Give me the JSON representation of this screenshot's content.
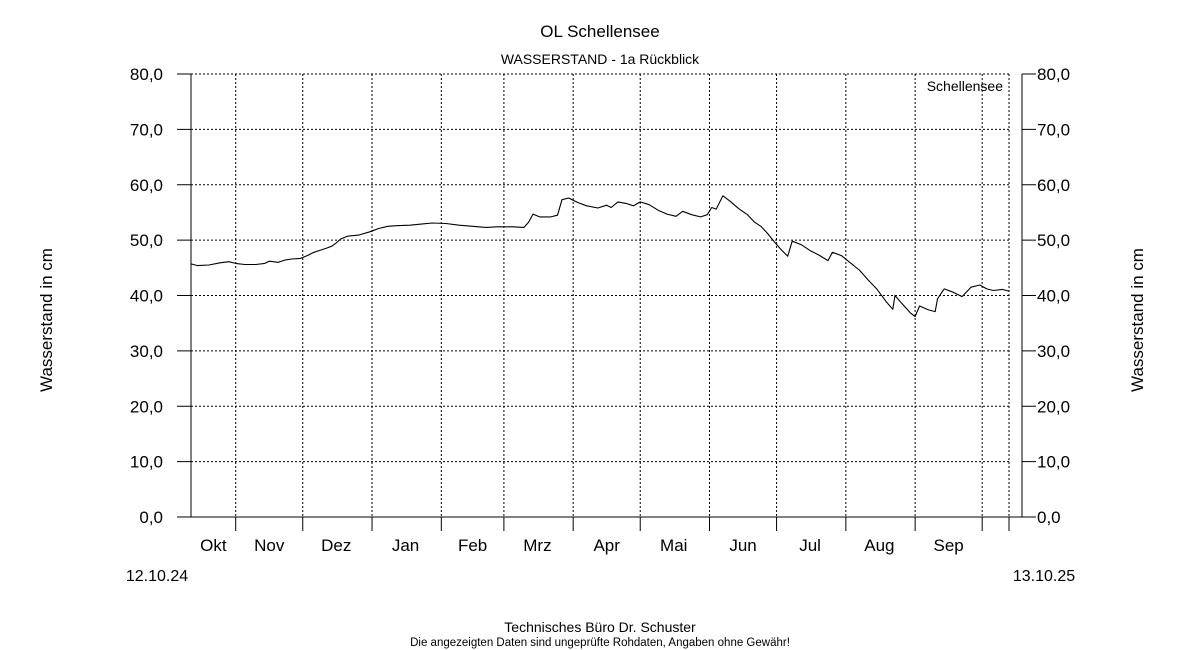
{
  "header": {
    "title": "OL Schellensee",
    "subtitle": "WASSERSTAND - 1a Rückblick"
  },
  "footer": {
    "credit": "Technisches Büro Dr. Schuster",
    "disclaimer": "Die angezeigten Daten sind ungeprüfte Rohdaten, Angaben ohne Gewähr!",
    "disclaimer_color": "#e00000"
  },
  "chart_data": {
    "type": "line",
    "title": "OL Schellensee",
    "subtitle": "WASSERSTAND - 1a Rückblick",
    "ylabel": "Wasserstand in cm",
    "ylabel_right": "Wasserstand in cm",
    "ylim": [
      0,
      80
    ],
    "yticks": [
      "0,0",
      "10,0",
      "20,0",
      "30,0",
      "40,0",
      "50,0",
      "60,0",
      "70,0",
      "80,0"
    ],
    "ytick_values": [
      0,
      10,
      20,
      30,
      40,
      50,
      60,
      70,
      80
    ],
    "x_start_label": "12.10.24",
    "x_end_label": "13.10.25",
    "x_start_date": "2024-10-12",
    "x_end_date": "2025-10-13",
    "month_labels": [
      "Okt",
      "Nov",
      "Dez",
      "Jan",
      "Feb",
      "Mrz",
      "Apr",
      "Mai",
      "Jun",
      "Jul",
      "Aug",
      "Sep"
    ],
    "month_label_dates": [
      "2024-10-22",
      "2024-11-16",
      "2024-12-16",
      "2025-01-16",
      "2025-02-15",
      "2025-03-16",
      "2025-04-16",
      "2025-05-16",
      "2025-06-16",
      "2025-07-16",
      "2025-08-16",
      "2025-09-16"
    ],
    "month_boundaries": [
      "2024-11-01",
      "2024-12-01",
      "2025-01-01",
      "2025-02-01",
      "2025-03-01",
      "2025-04-01",
      "2025-05-01",
      "2025-06-01",
      "2025-07-01",
      "2025-08-01",
      "2025-09-01",
      "2025-10-01",
      "2025-10-13"
    ],
    "grid": true,
    "legend": "top-right",
    "series": [
      {
        "name": "Schellensee",
        "color": "#000000",
        "points": [
          [
            "2024-10-12",
            45.7
          ],
          [
            "2024-10-15",
            45.4
          ],
          [
            "2024-10-20",
            45.5
          ],
          [
            "2024-10-25",
            45.9
          ],
          [
            "2024-10-29",
            46.1
          ],
          [
            "2024-11-01",
            45.8
          ],
          [
            "2024-11-05",
            45.6
          ],
          [
            "2024-11-10",
            45.6
          ],
          [
            "2024-11-14",
            45.8
          ],
          [
            "2024-11-16",
            46.2
          ],
          [
            "2024-11-20",
            46.0
          ],
          [
            "2024-11-23",
            46.4
          ],
          [
            "2024-11-26",
            46.6
          ],
          [
            "2024-11-30",
            46.7
          ],
          [
            "2024-12-03",
            47.2
          ],
          [
            "2024-12-06",
            47.8
          ],
          [
            "2024-12-09",
            48.2
          ],
          [
            "2024-12-12",
            48.6
          ],
          [
            "2024-12-14",
            48.9
          ],
          [
            "2024-12-16",
            49.5
          ],
          [
            "2024-12-18",
            50.2
          ],
          [
            "2024-12-21",
            50.7
          ],
          [
            "2024-12-26",
            50.9
          ],
          [
            "2024-12-31",
            51.5
          ],
          [
            "2025-01-04",
            52.1
          ],
          [
            "2025-01-08",
            52.5
          ],
          [
            "2025-01-12",
            52.6
          ],
          [
            "2025-01-18",
            52.7
          ],
          [
            "2025-01-23",
            52.9
          ],
          [
            "2025-01-28",
            53.1
          ],
          [
            "2025-02-03",
            53.0
          ],
          [
            "2025-02-09",
            52.7
          ],
          [
            "2025-02-15",
            52.5
          ],
          [
            "2025-02-21",
            52.3
          ],
          [
            "2025-02-26",
            52.4
          ],
          [
            "2025-03-05",
            52.4
          ],
          [
            "2025-03-10",
            52.3
          ],
          [
            "2025-03-12",
            53.2
          ],
          [
            "2025-03-14",
            54.7
          ],
          [
            "2025-03-17",
            54.2
          ],
          [
            "2025-03-22",
            54.2
          ],
          [
            "2025-03-25",
            54.5
          ],
          [
            "2025-03-27",
            57.3
          ],
          [
            "2025-03-30",
            57.6
          ],
          [
            "2025-04-03",
            56.8
          ],
          [
            "2025-04-07",
            56.2
          ],
          [
            "2025-04-12",
            55.8
          ],
          [
            "2025-04-16",
            56.3
          ],
          [
            "2025-04-18",
            55.9
          ],
          [
            "2025-04-21",
            56.9
          ],
          [
            "2025-04-25",
            56.6
          ],
          [
            "2025-04-28",
            56.2
          ],
          [
            "2025-05-01",
            56.9
          ],
          [
            "2025-05-05",
            56.4
          ],
          [
            "2025-05-09",
            55.4
          ],
          [
            "2025-05-13",
            54.7
          ],
          [
            "2025-05-17",
            54.3
          ],
          [
            "2025-05-20",
            55.2
          ],
          [
            "2025-05-24",
            54.6
          ],
          [
            "2025-05-28",
            54.2
          ],
          [
            "2025-05-31",
            54.6
          ],
          [
            "2025-06-02",
            55.9
          ],
          [
            "2025-06-04",
            55.6
          ],
          [
            "2025-06-07",
            58.0
          ],
          [
            "2025-06-10",
            57.1
          ],
          [
            "2025-06-14",
            55.7
          ],
          [
            "2025-06-18",
            54.6
          ],
          [
            "2025-06-21",
            53.3
          ],
          [
            "2025-06-24",
            52.5
          ],
          [
            "2025-06-27",
            51.2
          ],
          [
            "2025-06-30",
            49.7
          ],
          [
            "2025-07-03",
            48.3
          ],
          [
            "2025-07-06",
            47.1
          ],
          [
            "2025-07-08",
            49.8
          ],
          [
            "2025-07-12",
            49.2
          ],
          [
            "2025-07-16",
            48.1
          ],
          [
            "2025-07-20",
            47.3
          ],
          [
            "2025-07-24",
            46.3
          ],
          [
            "2025-07-26",
            47.8
          ],
          [
            "2025-07-30",
            47.2
          ],
          [
            "2025-08-03",
            45.9
          ],
          [
            "2025-08-07",
            44.6
          ],
          [
            "2025-08-11",
            42.8
          ],
          [
            "2025-08-15",
            41.1
          ],
          [
            "2025-08-19",
            38.9
          ],
          [
            "2025-08-22",
            37.5
          ],
          [
            "2025-08-23",
            40.0
          ],
          [
            "2025-08-26",
            38.6
          ],
          [
            "2025-08-30",
            36.8
          ],
          [
            "2025-09-01",
            36.2
          ],
          [
            "2025-09-03",
            38.1
          ],
          [
            "2025-09-07",
            37.4
          ],
          [
            "2025-09-10",
            37.1
          ],
          [
            "2025-09-11",
            39.4
          ],
          [
            "2025-09-14",
            41.2
          ],
          [
            "2025-09-18",
            40.6
          ],
          [
            "2025-09-22",
            39.8
          ],
          [
            "2025-09-26",
            41.5
          ],
          [
            "2025-09-30",
            41.9
          ],
          [
            "2025-10-03",
            41.2
          ],
          [
            "2025-10-06",
            40.9
          ],
          [
            "2025-10-10",
            41.1
          ],
          [
            "2025-10-13",
            40.8
          ]
        ]
      }
    ]
  }
}
